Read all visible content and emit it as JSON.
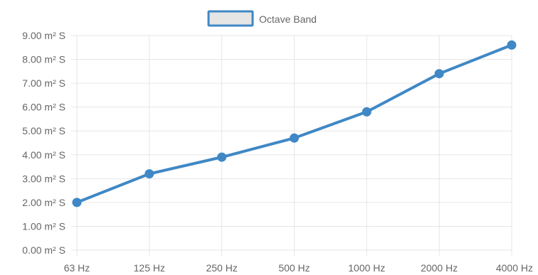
{
  "chart_data": {
    "type": "line",
    "categories": [
      "63 Hz",
      "125 Hz",
      "250 Hz",
      "500 Hz",
      "1000 Hz",
      "2000 Hz",
      "4000 Hz"
    ],
    "series": [
      {
        "name": "Octave Band",
        "values": [
          2.0,
          3.2,
          3.9,
          4.7,
          5.8,
          7.4,
          8.6
        ]
      }
    ],
    "yticks": [
      "0.00 m² S",
      "1.00 m² S",
      "2.00 m² S",
      "3.00 m² S",
      "4.00 m² S",
      "5.00 m² S",
      "6.00 m² S",
      "7.00 m² S",
      "8.00 m² S",
      "9.00 m² S"
    ],
    "ylim": [
      0,
      9
    ],
    "grid": true,
    "legend_position": "top-center",
    "colors": {
      "line": "#3f88c5",
      "legend_fill": "#e5e5e5",
      "grid": "#e6e6e6",
      "axis_text": "#666666"
    }
  }
}
